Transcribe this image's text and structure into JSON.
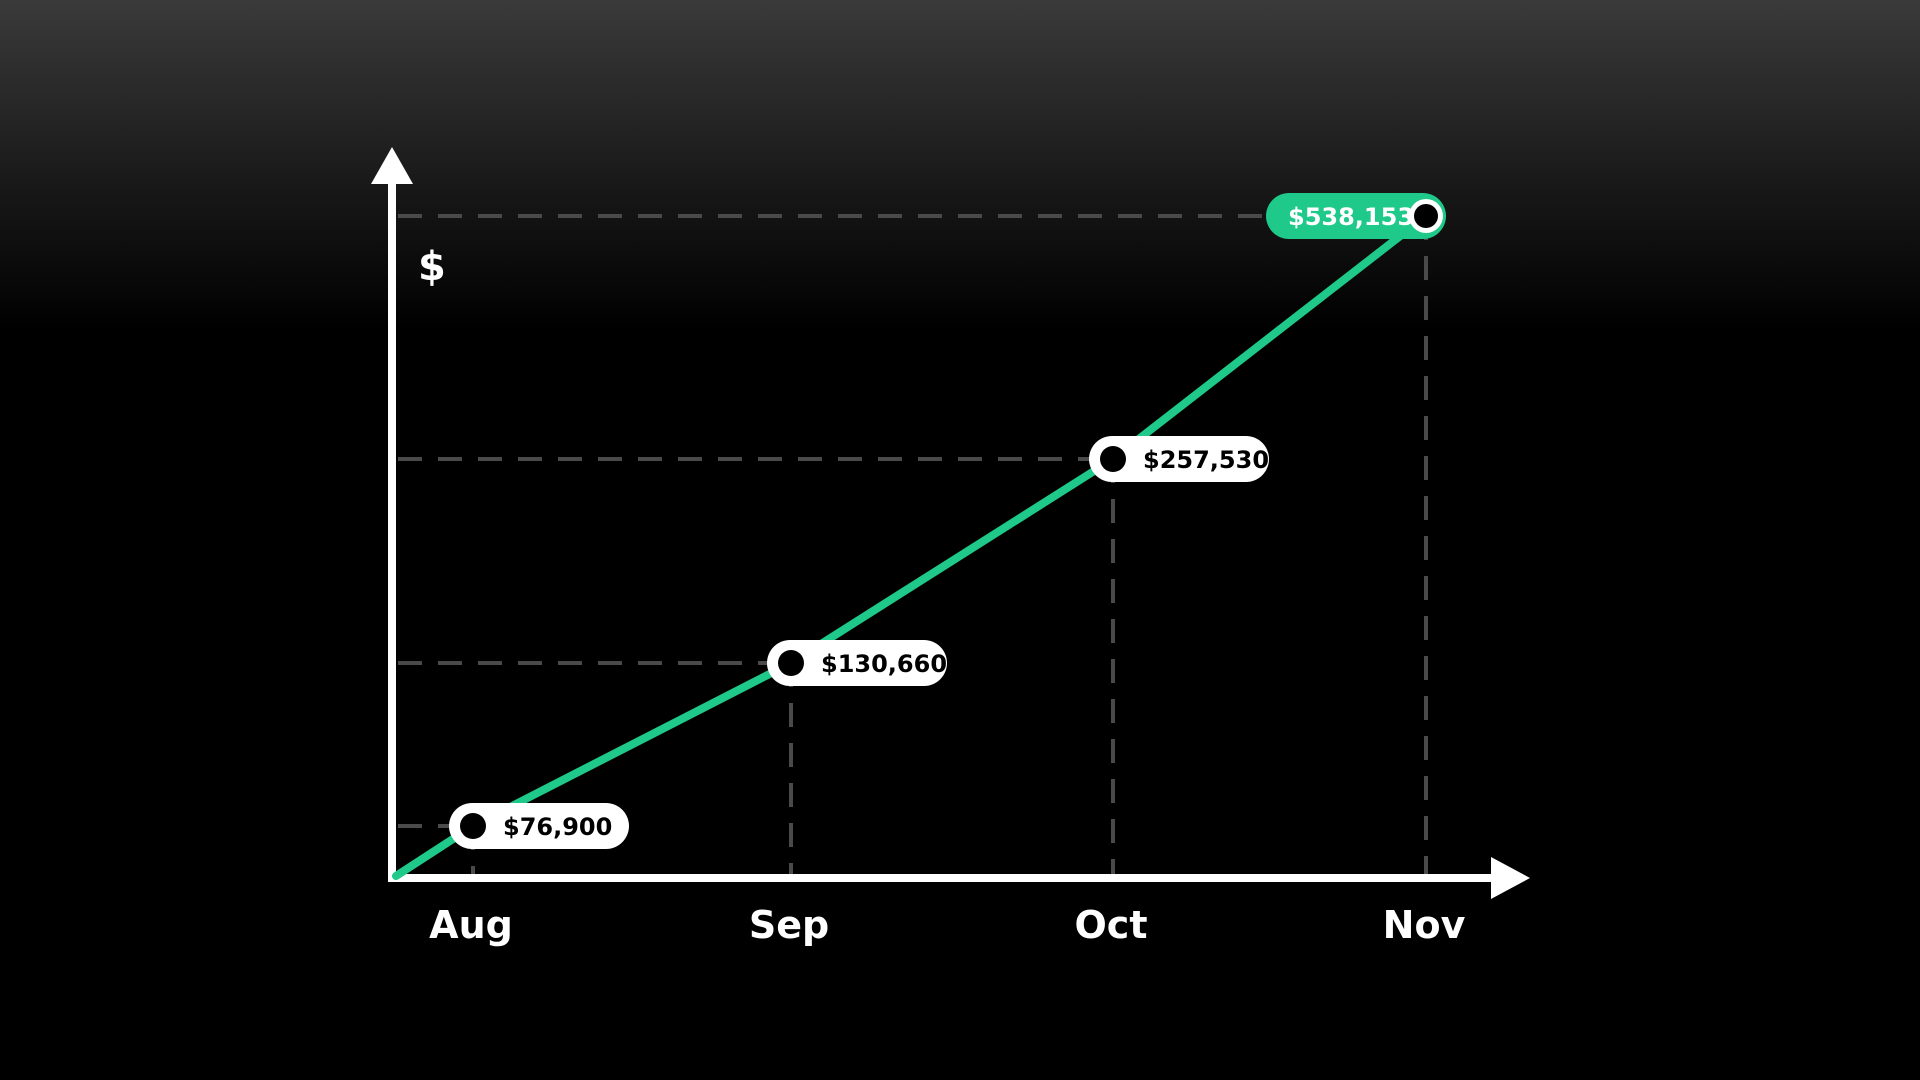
{
  "chart_data": {
    "type": "line",
    "ylabel": "$",
    "xlabel": "",
    "categories": [
      "Aug",
      "Sep",
      "Oct",
      "Nov"
    ],
    "values": [
      76900,
      130660,
      257530,
      538153
    ],
    "data_labels": [
      "$76,900",
      "$130,660",
      "$257,530",
      "$538,153"
    ],
    "grid": "dashed guide lines to each point",
    "highlight_index": 3,
    "colors": {
      "line": "#1ec98a",
      "axis": "#ffffff",
      "guide": "#4a4a4a",
      "label_bg": "#ffffff",
      "label_highlight_bg": "#1ec98a",
      "marker": "#000000",
      "background_top": "#3a3a3a",
      "background_bottom": "#000000"
    }
  }
}
